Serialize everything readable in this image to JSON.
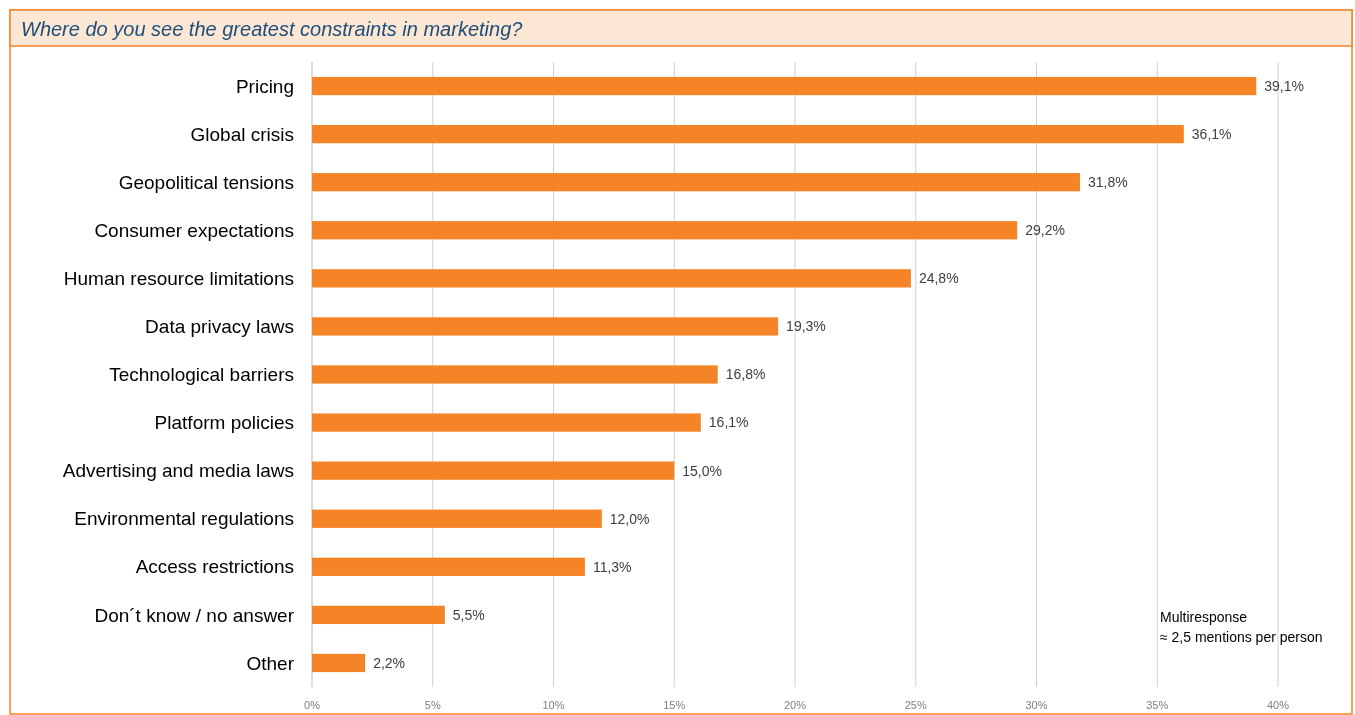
{
  "chart_data": {
    "type": "bar",
    "orientation": "horizontal",
    "title": "Where do you see the greatest constraints in marketing?",
    "categories": [
      "Pricing",
      "Global crisis",
      "Geopolitical tensions",
      "Consumer expectations",
      "Human resource limitations",
      "Data privacy laws",
      "Technological barriers",
      "Platform policies",
      "Advertising and media laws",
      "Environmental regulations",
      "Access restrictions",
      "Don´t know / no answer",
      "Other"
    ],
    "values": [
      39.1,
      36.1,
      31.8,
      29.2,
      24.8,
      19.3,
      16.8,
      16.1,
      15.0,
      12.0,
      11.3,
      5.5,
      2.2
    ],
    "value_labels": [
      "39,1%",
      "36,1%",
      "31,8%",
      "29,2%",
      "24,8%",
      "19,3%",
      "16,8%",
      "16,1%",
      "15,0%",
      "12,0%",
      "11,3%",
      "5,5%",
      "2,2%"
    ],
    "color": "#f58426",
    "xlim": [
      0,
      40
    ],
    "xticks": [
      {
        "value": 0,
        "label": "0%"
      },
      {
        "value": 5,
        "label": "5%"
      },
      {
        "value": 10,
        "label": "10%"
      },
      {
        "value": 15,
        "label": "15%"
      },
      {
        "value": 20,
        "label": "20%"
      },
      {
        "value": 25,
        "label": "25%"
      },
      {
        "value": 30,
        "label": "30%"
      },
      {
        "value": 35,
        "label": "35%"
      },
      {
        "value": 40,
        "label": "40%"
      }
    ],
    "grid": "x",
    "annotations": [
      "Multiresponse",
      "≈ 2,5 mentions per person"
    ]
  }
}
